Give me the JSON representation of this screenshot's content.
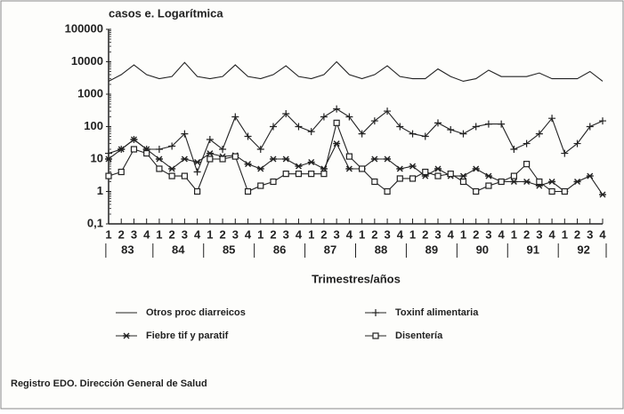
{
  "chart_data": {
    "type": "line",
    "title": "casos e. Logarítmica",
    "x_label": "Trimestres/años",
    "footer": "Registro EDO. Dirección General de Salud",
    "categories": [
      "1",
      "2",
      "3",
      "4",
      "1",
      "2",
      "3",
      "4",
      "1",
      "2",
      "3",
      "4",
      "1",
      "2",
      "3",
      "4",
      "1",
      "2",
      "3",
      "4",
      "1",
      "2",
      "3",
      "4",
      "1",
      "2",
      "3",
      "4",
      "1",
      "2",
      "3",
      "4",
      "1",
      "2",
      "3",
      "4",
      "1",
      "2",
      "3",
      "4"
    ],
    "year_labels": [
      "83",
      "84",
      "85",
      "86",
      "87",
      "88",
      "89",
      "90",
      "91",
      "92"
    ],
    "log_scale": true,
    "ylim": [
      0.1,
      100000
    ],
    "yticks": [
      {
        "value": 0.1,
        "label": "0,1"
      },
      1,
      10,
      100,
      1000,
      10000,
      100000
    ],
    "legend": "bottom",
    "series": [
      {
        "name": "Otros proc diarreicos",
        "color": "#222",
        "marker": "none",
        "values": [
          2500,
          4000,
          8000,
          4000,
          3000,
          3500,
          9500,
          3500,
          3000,
          3500,
          8000,
          3500,
          3000,
          4000,
          7500,
          3500,
          3000,
          4000,
          10000,
          4000,
          3000,
          4000,
          7500,
          3500,
          3000,
          3000,
          6000,
          3500,
          2500,
          3000,
          5500,
          3500,
          3500,
          3500,
          4500,
          3000,
          3000,
          3000,
          5000,
          2500
        ]
      },
      {
        "name": "Toxinf alimentaria",
        "color": "#222",
        "marker": "plus",
        "values": [
          15,
          20,
          40,
          20,
          20,
          25,
          60,
          4,
          40,
          20,
          200,
          50,
          20,
          100,
          250,
          100,
          70,
          200,
          350,
          200,
          60,
          150,
          300,
          100,
          60,
          50,
          130,
          80,
          60,
          100,
          120,
          120,
          20,
          30,
          60,
          180,
          15,
          30,
          100,
          150
        ]
      },
      {
        "name": "Fiebre tif y paratif",
        "color": "#222",
        "marker": "star",
        "values": [
          10,
          20,
          40,
          20,
          10,
          5,
          10,
          8,
          15,
          12,
          13,
          7,
          5,
          10,
          10,
          6,
          8,
          5,
          30,
          5,
          5,
          10,
          10,
          5,
          6,
          3,
          5,
          3,
          3,
          5,
          3,
          2,
          2,
          2,
          1.5,
          2,
          1,
          2,
          3,
          0.8
        ]
      },
      {
        "name": "Disentería",
        "color": "#222",
        "marker": "square",
        "values": [
          3,
          4,
          20,
          15,
          5,
          3,
          3,
          1,
          10,
          10,
          12,
          1,
          1.5,
          2,
          3.5,
          3.5,
          3.5,
          3.5,
          130,
          12,
          5,
          2,
          1,
          2.5,
          2.5,
          4,
          3,
          3.5,
          2,
          1,
          1.5,
          2,
          3,
          7,
          2,
          1,
          1,
          null,
          null,
          null
        ]
      }
    ]
  }
}
